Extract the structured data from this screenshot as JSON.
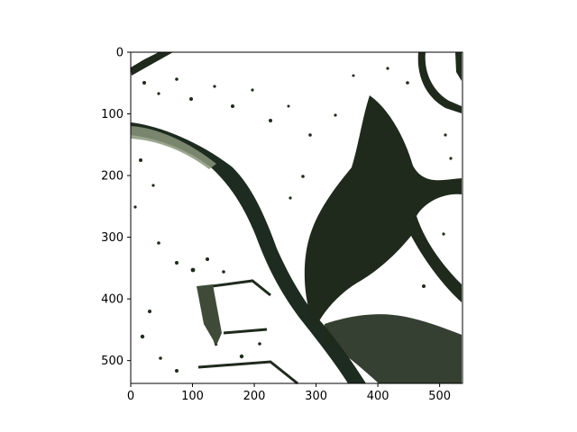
{
  "figure": {
    "image_alt": "satellite-image-river-vegetation",
    "x_axis": {
      "range": [
        0,
        537
      ],
      "ticks": [
        "0",
        "100",
        "200",
        "300",
        "400",
        "500"
      ],
      "tick_values": [
        0,
        100,
        200,
        300,
        400,
        500
      ]
    },
    "y_axis": {
      "range": [
        0,
        537
      ],
      "ticks": [
        "0",
        "100",
        "200",
        "300",
        "400",
        "500"
      ],
      "tick_values": [
        0,
        100,
        200,
        300,
        400,
        500
      ],
      "inverted": true
    },
    "colors": {
      "background": "#ffffff",
      "vegetation": "#1f2a1c",
      "river": "#1d2b20",
      "light_vegetation": "#6f7d62",
      "axis": "#000000"
    }
  }
}
